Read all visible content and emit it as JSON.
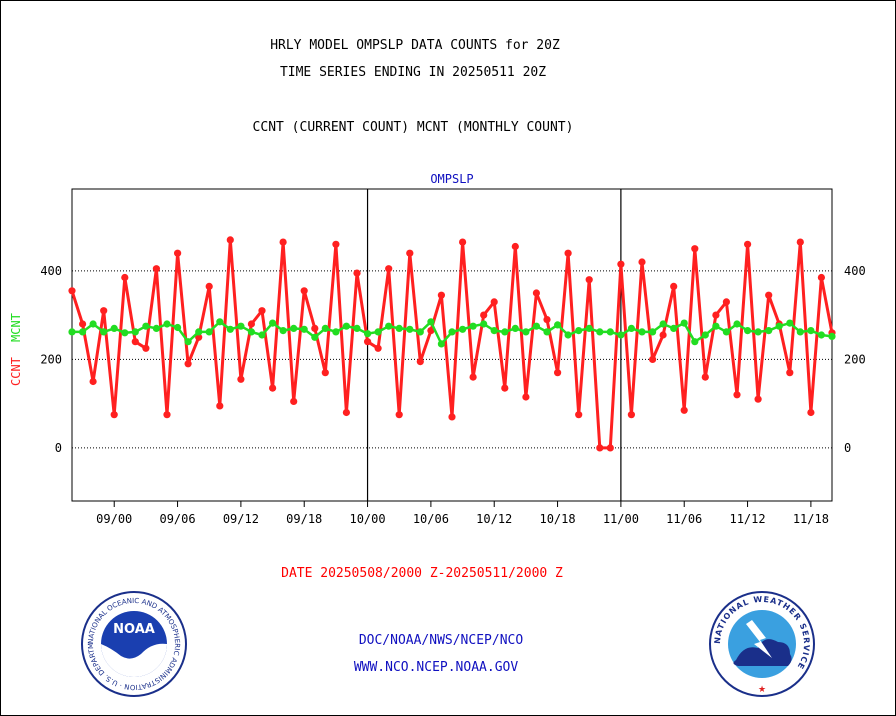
{
  "header": {
    "line1": "HRLY MODEL OMPSLP DATA COUNTS for 20Z",
    "line2": "TIME SERIES ENDING IN 20250511 20Z",
    "line3": "CCNT (CURRENT COUNT) MCNT (MONTHLY COUNT)"
  },
  "footer": {
    "date_range": "DATE 20250508/2000 Z-20250511/2000 Z",
    "org": "DOC/NOAA/NWS/NCEP/NCO",
    "url": "WWW.NCO.NCEP.NOAA.GOV",
    "noaa_logo_text": "NOAA",
    "noaa_ring_text": "NATIONAL OCEANIC AND ATMOSPHERIC ADMINISTRATION · U.S. DEPARTMENT OF COMMERCE",
    "nws_ring_text": "NATIONAL WEATHER SERVICE"
  },
  "colors": {
    "ccnt": "#ff2020",
    "mcnt": "#22dd22",
    "title": "#1010c0",
    "date": "#ff0000"
  },
  "chart_data": {
    "type": "line",
    "title": "OMPSLP",
    "ylabel_ccnt": "CCNT",
    "ylabel_mcnt": "MCNT",
    "ylim": [
      -120,
      585
    ],
    "yticks": [
      0,
      200,
      400
    ],
    "grid": "dotted horizontal at y ticks",
    "xticks": [
      "09/00",
      "09/06",
      "09/12",
      "09/18",
      "10/00",
      "10/06",
      "10/12",
      "10/18",
      "11/00",
      "11/06",
      "11/12",
      "11/18"
    ],
    "xtick_hours": [
      4,
      10,
      16,
      22,
      28,
      34,
      40,
      46,
      52,
      58,
      64,
      70
    ],
    "day_boundaries_hours": [
      28,
      52,
      76
    ],
    "x_hours_range": [
      0,
      72
    ],
    "series": [
      {
        "name": "CCNT",
        "x": [
          0,
          1,
          2,
          3,
          4,
          5,
          6,
          7,
          8,
          9,
          10,
          11,
          12,
          13,
          14,
          15,
          16,
          17,
          18,
          19,
          20,
          21,
          22,
          23,
          24,
          25,
          26,
          27,
          28,
          29,
          30,
          31,
          32,
          33,
          34,
          35,
          36,
          37,
          38,
          39,
          40,
          41,
          42,
          43,
          44,
          45,
          46,
          47,
          48,
          49,
          50,
          51,
          52,
          53,
          54,
          55,
          56,
          57,
          58,
          59,
          60,
          61,
          62,
          63,
          64,
          65,
          66,
          67,
          68,
          69,
          70,
          71,
          72
        ],
        "values": [
          355,
          280,
          150,
          310,
          75,
          385,
          240,
          225,
          405,
          75,
          440,
          190,
          250,
          365,
          95,
          470,
          155,
          280,
          310,
          135,
          465,
          105,
          355,
          270,
          170,
          460,
          80,
          395,
          240,
          225,
          405,
          75,
          440,
          195,
          265,
          345,
          70,
          465,
          160,
          300,
          330,
          135,
          455,
          115,
          350,
          290,
          170,
          440,
          75,
          380,
          0,
          0,
          415,
          75,
          420,
          200,
          255,
          365,
          85,
          450,
          160,
          300,
          330,
          120,
          460,
          110,
          345,
          280,
          170,
          465,
          80,
          385,
          260
        ]
      },
      {
        "name": "MCNT",
        "x": [
          0,
          1,
          2,
          3,
          4,
          5,
          6,
          7,
          8,
          9,
          10,
          11,
          12,
          13,
          14,
          15,
          16,
          17,
          18,
          19,
          20,
          21,
          22,
          23,
          24,
          25,
          26,
          27,
          28,
          29,
          30,
          31,
          32,
          33,
          34,
          35,
          36,
          37,
          38,
          39,
          40,
          41,
          42,
          43,
          44,
          45,
          46,
          47,
          48,
          49,
          50,
          51,
          52,
          53,
          54,
          55,
          56,
          57,
          58,
          59,
          60,
          61,
          62,
          63,
          64,
          65,
          66,
          67,
          68,
          69,
          70,
          71,
          72
        ],
        "values": [
          262,
          262,
          280,
          262,
          270,
          260,
          262,
          275,
          270,
          280,
          272,
          240,
          262,
          262,
          285,
          268,
          275,
          262,
          255,
          282,
          265,
          270,
          268,
          250,
          270,
          262,
          275,
          270,
          258,
          262,
          275,
          270,
          268,
          262,
          285,
          235,
          262,
          268,
          275,
          280,
          265,
          262,
          270,
          262,
          275,
          262,
          278,
          255,
          265,
          270,
          262,
          262,
          255,
          270,
          262,
          262,
          280,
          270,
          282,
          240,
          255,
          275,
          262,
          280,
          265,
          262,
          265,
          275,
          282,
          262,
          265,
          255,
          252
        ]
      }
    ]
  }
}
